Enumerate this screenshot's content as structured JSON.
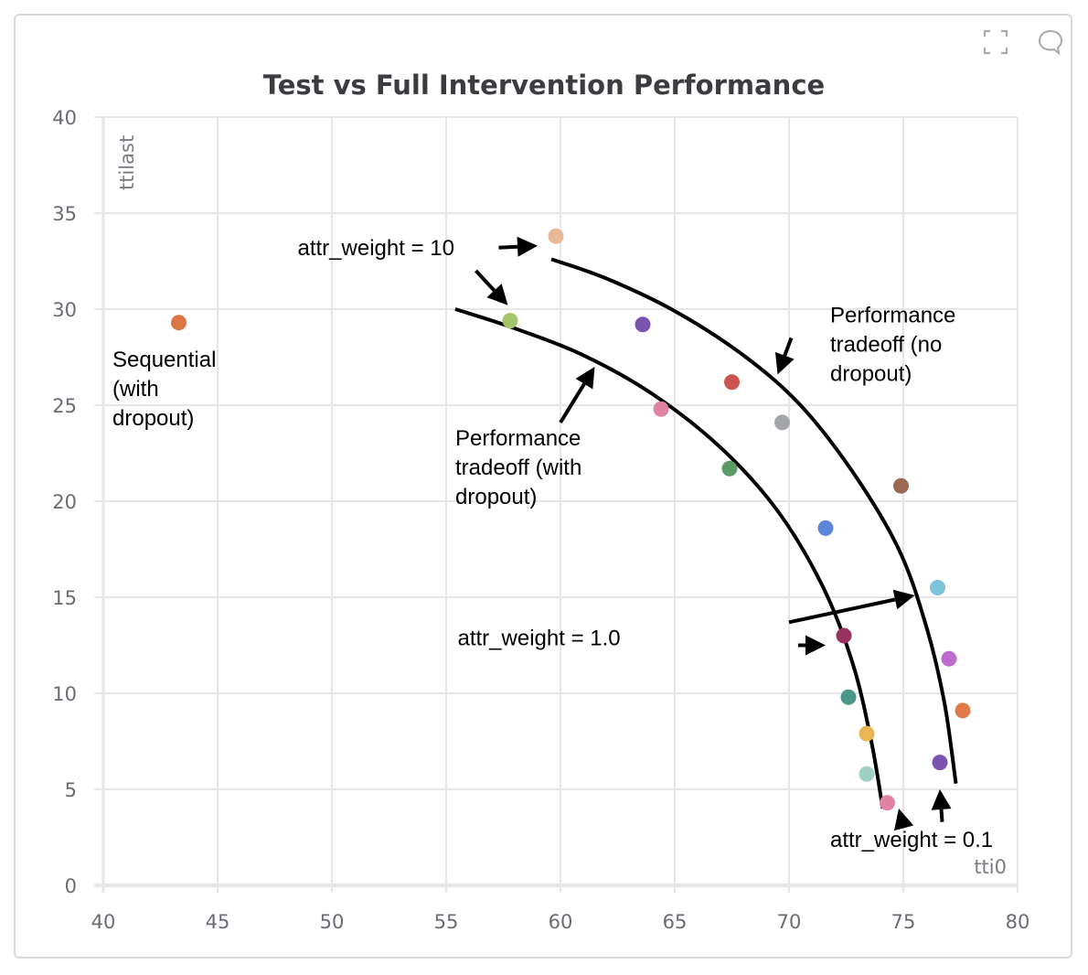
{
  "panel": {
    "icons": [
      {
        "name": "fullscreen-icon",
        "label": "Expand panel"
      },
      {
        "name": "comment-icon",
        "label": "Comment"
      }
    ]
  },
  "chart_data": {
    "type": "scatter",
    "title": "Test vs Full Intervention Performance",
    "xlabel": "tti0",
    "ylabel": "ttilast",
    "xlim": [
      40,
      80
    ],
    "ylim": [
      0,
      40
    ],
    "xticks": [
      40,
      45,
      50,
      55,
      60,
      65,
      70,
      75,
      80
    ],
    "yticks": [
      0,
      5,
      10,
      15,
      20,
      25,
      30,
      35,
      40
    ],
    "grid": true,
    "legend": "none",
    "points": [
      {
        "x": 43.3,
        "y": 29.3,
        "color": "#db7544"
      },
      {
        "x": 59.8,
        "y": 33.8,
        "color": "#e8b898"
      },
      {
        "x": 57.8,
        "y": 29.4,
        "color": "#a3c46a"
      },
      {
        "x": 63.6,
        "y": 29.2,
        "color": "#7853b0"
      },
      {
        "x": 67.5,
        "y": 26.2,
        "color": "#cc5450"
      },
      {
        "x": 64.4,
        "y": 24.8,
        "color": "#e083a2"
      },
      {
        "x": 69.7,
        "y": 24.1,
        "color": "#a4a6aa"
      },
      {
        "x": 67.4,
        "y": 21.7,
        "color": "#5a9a63"
      },
      {
        "x": 74.9,
        "y": 20.8,
        "color": "#9c6852"
      },
      {
        "x": 71.6,
        "y": 18.6,
        "color": "#5b86d9"
      },
      {
        "x": 76.5,
        "y": 15.5,
        "color": "#7cc2db"
      },
      {
        "x": 72.4,
        "y": 13.0,
        "color": "#98325f"
      },
      {
        "x": 77.0,
        "y": 11.8,
        "color": "#bd6ccb"
      },
      {
        "x": 72.6,
        "y": 9.8,
        "color": "#4a9488"
      },
      {
        "x": 77.6,
        "y": 9.1,
        "color": "#e07a46"
      },
      {
        "x": 73.4,
        "y": 7.9,
        "color": "#e9b752"
      },
      {
        "x": 76.6,
        "y": 6.4,
        "color": "#7853b0"
      },
      {
        "x": 73.4,
        "y": 5.8,
        "color": "#9ed1c3"
      },
      {
        "x": 74.3,
        "y": 4.3,
        "color": "#e083a2"
      }
    ],
    "curves": [
      {
        "name": "tradeoff-with-dropout",
        "points": [
          [
            55.4,
            30.0
          ],
          [
            58,
            29.0
          ],
          [
            61,
            27.6
          ],
          [
            64,
            25.6
          ],
          [
            67,
            22.8
          ],
          [
            69.5,
            19.5
          ],
          [
            71.5,
            15.5
          ],
          [
            72.8,
            11.5
          ],
          [
            73.6,
            7.5
          ],
          [
            74.1,
            4.0
          ]
        ]
      },
      {
        "name": "tradeoff-no-dropout",
        "points": [
          [
            59.6,
            32.6
          ],
          [
            62,
            31.6
          ],
          [
            65,
            29.9
          ],
          [
            68,
            27.6
          ],
          [
            70.5,
            25.0
          ],
          [
            72.8,
            21.5
          ],
          [
            74.8,
            17.5
          ],
          [
            76.0,
            13.5
          ],
          [
            76.8,
            9.5
          ],
          [
            77.3,
            5.3
          ]
        ]
      }
    ],
    "annotations": [
      {
        "id": "sequential",
        "lines": [
          "Sequential",
          "(with",
          "dropout)"
        ],
        "x": 40.4,
        "y": 27.0
      },
      {
        "id": "attr10",
        "lines": [
          "attr_weight = 10"
        ],
        "x": 48.5,
        "y": 32.8
      },
      {
        "id": "perf-no-dropout",
        "lines": [
          "Performance",
          "tradeoff (no",
          "dropout)"
        ],
        "x": 71.8,
        "y": 29.3
      },
      {
        "id": "perf-with-dropout",
        "lines": [
          "Performance",
          "tradeoff (with",
          "dropout)"
        ],
        "x": 55.4,
        "y": 22.9
      },
      {
        "id": "attr1",
        "lines": [
          "attr_weight = 1.0"
        ],
        "x": 55.5,
        "y": 12.5
      },
      {
        "id": "attr01",
        "lines": [
          "attr_weight = 0.1"
        ],
        "x": 71.8,
        "y": 2.0
      }
    ],
    "arrows": [
      {
        "from": [
          57.3,
          33.2
        ],
        "to": [
          59.0,
          33.3
        ]
      },
      {
        "from": [
          56.3,
          32.0
        ],
        "to": [
          57.7,
          30.2
        ]
      },
      {
        "from": [
          70.1,
          28.5
        ],
        "to": [
          69.5,
          26.6
        ]
      },
      {
        "from": [
          60.0,
          24.1
        ],
        "to": [
          61.5,
          27.0
        ]
      },
      {
        "from": [
          70.0,
          13.7
        ],
        "to": [
          75.5,
          15.1
        ]
      },
      {
        "from": [
          70.4,
          12.5
        ],
        "to": [
          71.6,
          12.5
        ]
      },
      {
        "from": [
          75.0,
          3.1
        ],
        "to": [
          74.8,
          4.0
        ]
      },
      {
        "from": [
          76.7,
          3.3
        ],
        "to": [
          76.6,
          5.0
        ]
      }
    ]
  }
}
